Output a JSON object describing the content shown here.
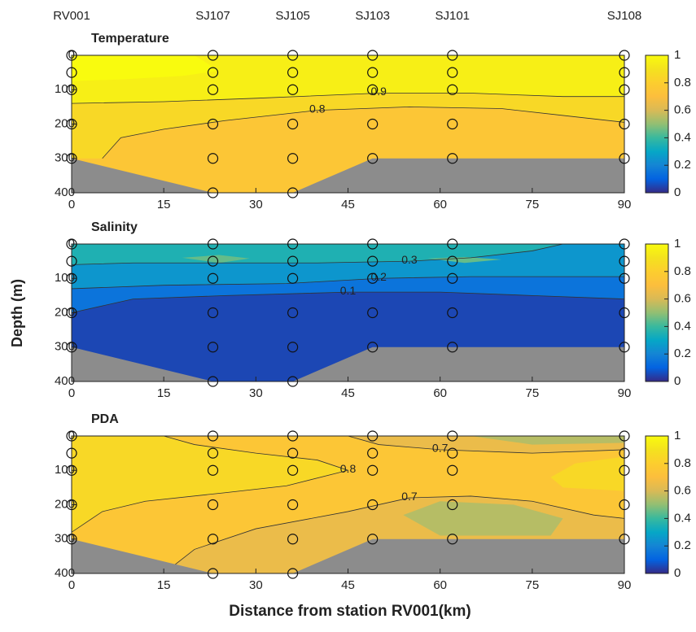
{
  "stations": [
    {
      "name": "RV001",
      "x": 0,
      "depths": [
        0,
        50,
        100,
        200,
        300
      ]
    },
    {
      "name": "SJ107",
      "x": 23,
      "depths": [
        0,
        50,
        100,
        200,
        300,
        400
      ]
    },
    {
      "name": "SJ105",
      "x": 36,
      "depths": [
        0,
        50,
        100,
        200,
        300,
        400
      ]
    },
    {
      "name": "SJ103",
      "x": 49,
      "depths": [
        0,
        50,
        100,
        200,
        300
      ]
    },
    {
      "name": "SJ101",
      "x": 62,
      "depths": [
        0,
        50,
        100,
        200,
        300
      ]
    },
    {
      "name": "SJ108",
      "x": 90,
      "depths": [
        0,
        50,
        100,
        200,
        300
      ]
    }
  ],
  "xlabel": "Distance from station RV001(km)",
  "ylabel": "Depth (m)",
  "bottom": {
    "x": [
      0,
      23,
      36,
      49,
      90
    ],
    "depth": [
      300,
      400,
      400,
      300,
      300
    ],
    "color": "#8c8c8c"
  },
  "chart_data": [
    {
      "type": "contour",
      "title": "Temperature",
      "xlim": [
        0,
        90
      ],
      "xticks": [
        0,
        15,
        30,
        45,
        60,
        75,
        90
      ],
      "ylim": [
        0,
        400
      ],
      "yticks": [
        0,
        100,
        200,
        300,
        400
      ],
      "y_reversed": true,
      "clim": [
        0,
        1
      ],
      "cticks": [
        0,
        0.2,
        0.4,
        0.6,
        0.8,
        1
      ],
      "colormap": [
        "#352a87",
        "#0363e1",
        "#1485d4",
        "#06a7c6",
        "#38b99e",
        "#92bf73",
        "#d9ba56",
        "#fcbe3d",
        "#fcce2e",
        "#f4e21e",
        "#f9fb0e"
      ],
      "regions": [
        {
          "value": 0.85,
          "x": [
            0,
            90,
            90,
            0
          ],
          "depth": [
            0,
            0,
            400,
            400
          ]
        },
        {
          "value": 0.95,
          "x": [
            0,
            90,
            90,
            80,
            65,
            50,
            30,
            15,
            0
          ],
          "depth": [
            0,
            0,
            120,
            120,
            110,
            110,
            125,
            135,
            140
          ]
        },
        {
          "value": 1,
          "x": [
            0,
            20,
            24,
            18,
            8,
            0
          ],
          "depth": [
            0,
            0,
            45,
            60,
            70,
            75
          ]
        },
        {
          "value": 0.75,
          "x": [
            5,
            8,
            15,
            25,
            40,
            55,
            70,
            80,
            90,
            90,
            0,
            0
          ],
          "depth": [
            300,
            240,
            215,
            190,
            160,
            150,
            155,
            175,
            195,
            400,
            400,
            300
          ]
        }
      ],
      "contours": [
        {
          "level": 0.9,
          "x": [
            0,
            15,
            30,
            50,
            65,
            80,
            90
          ],
          "depth": [
            140,
            135,
            125,
            110,
            110,
            120,
            120
          ]
        },
        {
          "level": 0.8,
          "x": [
            5,
            8,
            15,
            25,
            40,
            55,
            70,
            80,
            90
          ],
          "depth": [
            300,
            240,
            215,
            190,
            160,
            150,
            155,
            175,
            195
          ]
        }
      ]
    },
    {
      "type": "contour",
      "title": "Salinity",
      "xlim": [
        0,
        90
      ],
      "xticks": [
        0,
        15,
        30,
        45,
        60,
        75,
        90
      ],
      "ylim": [
        0,
        400
      ],
      "yticks": [
        0,
        100,
        200,
        300,
        400
      ],
      "y_reversed": true,
      "clim": [
        0,
        1
      ],
      "cticks": [
        0,
        0.2,
        0.4,
        0.6,
        0.8,
        1
      ],
      "colormap": [
        "#352a87",
        "#0363e1",
        "#1485d4",
        "#06a7c6",
        "#38b99e",
        "#92bf73",
        "#d9ba56",
        "#fcbe3d",
        "#fcce2e",
        "#f4e21e",
        "#f9fb0e"
      ],
      "regions": [
        {
          "value": 0.05,
          "x": [
            0,
            90,
            90,
            0
          ],
          "depth": [
            0,
            0,
            400,
            400
          ]
        },
        {
          "value": 0.15,
          "x": [
            0,
            90,
            90,
            75,
            60,
            45,
            25,
            10,
            0
          ],
          "depth": [
            0,
            0,
            160,
            150,
            140,
            140,
            150,
            160,
            200
          ]
        },
        {
          "value": 0.25,
          "x": [
            0,
            90,
            90,
            80,
            65,
            50,
            35,
            15,
            0
          ],
          "depth": [
            0,
            0,
            95,
            95,
            95,
            100,
            115,
            120,
            130
          ]
        },
        {
          "value": 0.35,
          "x": [
            0,
            80,
            75,
            65,
            55,
            40,
            20,
            10,
            0
          ],
          "depth": [
            0,
            0,
            20,
            40,
            50,
            55,
            55,
            55,
            60
          ]
        },
        {
          "value": 0.45,
          "x": [
            18,
            24,
            29,
            24
          ],
          "depth": [
            40,
            32,
            42,
            55
          ]
        },
        {
          "value": 0.45,
          "x": [
            58,
            64,
            70,
            64
          ],
          "depth": [
            42,
            38,
            45,
            55
          ]
        }
      ],
      "contours": [
        {
          "level": 0.3,
          "x": [
            0,
            10,
            20,
            40,
            55,
            65,
            75,
            80
          ],
          "depth": [
            60,
            55,
            55,
            55,
            50,
            40,
            20,
            0
          ]
        },
        {
          "level": 0.2,
          "x": [
            0,
            15,
            35,
            50,
            65,
            80,
            90
          ],
          "depth": [
            130,
            120,
            115,
            100,
            95,
            95,
            95
          ]
        },
        {
          "level": 0.1,
          "x": [
            0,
            10,
            25,
            45,
            60,
            75,
            90
          ],
          "depth": [
            200,
            160,
            150,
            140,
            140,
            150,
            160
          ]
        }
      ]
    },
    {
      "type": "contour",
      "title": "PDA",
      "xlim": [
        0,
        90
      ],
      "xticks": [
        0,
        15,
        30,
        45,
        60,
        75,
        90
      ],
      "ylim": [
        0,
        400
      ],
      "yticks": [
        0,
        100,
        200,
        300,
        400
      ],
      "y_reversed": true,
      "clim": [
        0,
        1
      ],
      "cticks": [
        0,
        0.2,
        0.4,
        0.6,
        0.8,
        1
      ],
      "colormap": [
        "#352a87",
        "#0363e1",
        "#1485d4",
        "#06a7c6",
        "#38b99e",
        "#92bf73",
        "#d9ba56",
        "#fcbe3d",
        "#fcce2e",
        "#f4e21e",
        "#f9fb0e"
      ],
      "regions": [
        {
          "value": 0.75,
          "x": [
            0,
            90,
            90,
            0
          ],
          "depth": [
            0,
            0,
            400,
            400
          ]
        },
        {
          "value": 0.85,
          "x": [
            0,
            15,
            20,
            30,
            40,
            45,
            35,
            25,
            12,
            5,
            0
          ],
          "depth": [
            0,
            0,
            25,
            50,
            70,
            100,
            145,
            165,
            190,
            220,
            280
          ]
        },
        {
          "value": 0.85,
          "x": [
            90,
            82,
            78,
            80,
            90
          ],
          "depth": [
            60,
            80,
            120,
            150,
            160
          ]
        },
        {
          "value": 0.65,
          "x": [
            15,
            20,
            30,
            45,
            55,
            65,
            75,
            85,
            90,
            90,
            49,
            36
          ],
          "depth": [
            400,
            330,
            270,
            220,
            180,
            175,
            190,
            230,
            240,
            300,
            300,
            400
          ]
        },
        {
          "value": 0.65,
          "x": [
            45,
            90,
            90,
            75,
            60,
            50
          ],
          "depth": [
            0,
            0,
            40,
            50,
            40,
            25
          ]
        },
        {
          "value": 0.55,
          "x": [
            54,
            60,
            72,
            80,
            78,
            60
          ],
          "depth": [
            230,
            190,
            200,
            240,
            290,
            290
          ]
        },
        {
          "value": 0.55,
          "x": [
            65,
            90,
            90,
            75
          ],
          "depth": [
            0,
            0,
            20,
            25
          ]
        }
      ],
      "contours": [
        {
          "level": 0.8,
          "x": [
            0,
            5,
            12,
            25,
            35,
            45,
            40,
            30,
            20,
            15
          ],
          "depth": [
            280,
            220,
            190,
            165,
            145,
            100,
            70,
            50,
            25,
            0
          ]
        },
        {
          "level": 0.7,
          "x": [
            15,
            20,
            30,
            45,
            55,
            65,
            75,
            85,
            90
          ],
          "depth": [
            400,
            330,
            270,
            220,
            180,
            175,
            190,
            230,
            240
          ]
        },
        {
          "level": 0.7,
          "x": [
            45,
            50,
            60,
            75,
            90
          ],
          "depth": [
            0,
            25,
            40,
            50,
            40
          ]
        }
      ]
    }
  ]
}
